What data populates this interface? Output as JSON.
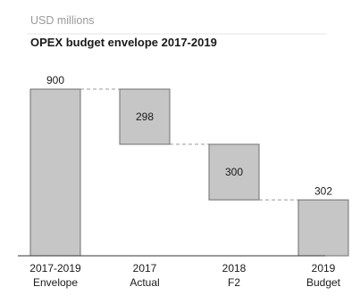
{
  "chart_data": {
    "type": "bar",
    "subtype": "waterfall",
    "unit_label": "USD millions",
    "title": "OPEX budget envelope 2017-2019",
    "categories": [
      [
        "2017-2019",
        "Envelope"
      ],
      [
        "2017",
        "Actual"
      ],
      [
        "2018",
        "F2"
      ],
      [
        "2019",
        "Budget"
      ]
    ],
    "bars": [
      {
        "kind": "total",
        "value": 900,
        "start": 0,
        "end": 900
      },
      {
        "kind": "decrease",
        "value": 298,
        "start": 900,
        "end": 602
      },
      {
        "kind": "decrease",
        "value": 300,
        "start": 602,
        "end": 302
      },
      {
        "kind": "total",
        "value": 302,
        "start": 0,
        "end": 302
      }
    ],
    "ylim": [
      0,
      900
    ],
    "connectors": "dashed",
    "grid": false,
    "legend": "none",
    "bar_color": "#c6c6c6",
    "bar_edge_color": "#6f6f6f"
  }
}
